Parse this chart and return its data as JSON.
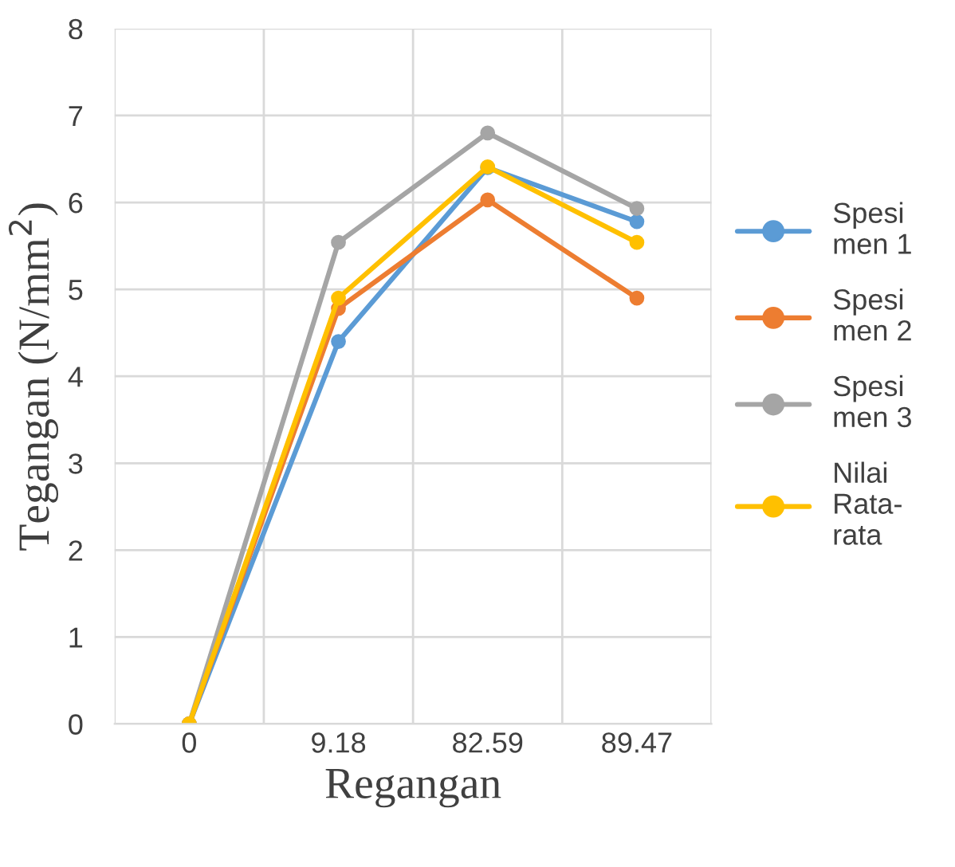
{
  "chart_data": {
    "type": "line",
    "xlabel": "Regangan",
    "ylabel": "Tegangan (N/mm$^{2}$)",
    "categories": [
      "0",
      "9.18",
      "82.59",
      "89.47"
    ],
    "series": [
      {
        "name": "Spesimen 1",
        "color": "#5b9bd5",
        "values": [
          0,
          4.4,
          6.4,
          5.78
        ]
      },
      {
        "name": "Spesimen 2",
        "color": "#ed7d31",
        "values": [
          0,
          4.78,
          6.03,
          4.9
        ]
      },
      {
        "name": "Spesimen 3",
        "color": "#a5a5a5",
        "values": [
          0,
          5.54,
          6.8,
          5.93
        ]
      },
      {
        "name": "Nilai Rata-rata",
        "color": "#ffc000",
        "values": [
          0,
          4.9,
          6.41,
          5.54
        ]
      }
    ],
    "ylim": [
      0,
      8
    ],
    "yticks": [
      0,
      1,
      2,
      3,
      4,
      5,
      6,
      7,
      8
    ],
    "grid": true,
    "legend": "right",
    "marker": "circle",
    "line_style": "solid"
  }
}
